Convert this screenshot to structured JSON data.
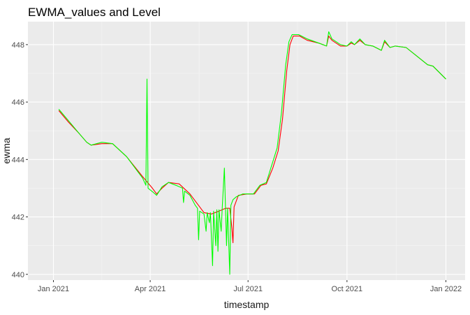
{
  "chart_data": {
    "type": "line",
    "title": "EWMA_values and Level",
    "xlabel": "timestamp",
    "ylabel": "ewma",
    "x_type": "date",
    "xlim": [
      "2021-01-01",
      "2022-01-01"
    ],
    "ylim": [
      439.8,
      448.8
    ],
    "x_ticks": [
      {
        "date": "2021-01-01",
        "label": "Jan 2021"
      },
      {
        "date": "2021-04-01",
        "label": "Apr 2021"
      },
      {
        "date": "2021-07-01",
        "label": "Jul 2021"
      },
      {
        "date": "2021-10-01",
        "label": "Oct 2021"
      },
      {
        "date": "2022-01-01",
        "label": "Jan 2022"
      }
    ],
    "y_ticks": [
      440,
      442,
      444,
      446,
      448
    ],
    "grid": true,
    "background": "#ebebeb",
    "series": [
      {
        "color": "#ff0000",
        "points": [
          [
            "2021-01-06",
            445.7
          ],
          [
            "2021-01-15",
            445.3
          ],
          [
            "2021-01-25",
            444.9
          ],
          [
            "2021-02-01",
            444.6
          ],
          [
            "2021-02-05",
            444.5
          ],
          [
            "2021-02-15",
            444.55
          ],
          [
            "2021-02-25",
            444.55
          ],
          [
            "2021-03-10",
            444.1
          ],
          [
            "2021-03-25",
            443.4
          ],
          [
            "2021-04-03",
            443.0
          ],
          [
            "2021-04-07",
            442.8
          ],
          [
            "2021-04-12",
            443.0
          ],
          [
            "2021-04-18",
            443.2
          ],
          [
            "2021-04-28",
            443.15
          ],
          [
            "2021-05-08",
            442.8
          ],
          [
            "2021-05-15",
            442.45
          ],
          [
            "2021-05-21",
            442.15
          ],
          [
            "2021-05-28",
            442.1
          ],
          [
            "2021-06-04",
            442.2
          ],
          [
            "2021-06-10",
            442.3
          ],
          [
            "2021-06-14",
            442.3
          ],
          [
            "2021-06-16",
            441.6
          ],
          [
            "2021-06-17",
            441.1
          ],
          [
            "2021-06-18",
            442.35
          ],
          [
            "2021-06-22",
            442.75
          ],
          [
            "2021-06-30",
            442.8
          ],
          [
            "2021-07-07",
            442.8
          ],
          [
            "2021-07-13",
            443.1
          ],
          [
            "2021-07-18",
            443.15
          ],
          [
            "2021-07-24",
            443.7
          ],
          [
            "2021-07-29",
            444.3
          ],
          [
            "2021-08-02",
            445.4
          ],
          [
            "2021-08-06",
            447.1
          ],
          [
            "2021-08-09",
            448.0
          ],
          [
            "2021-08-12",
            448.3
          ],
          [
            "2021-08-18",
            448.3
          ],
          [
            "2021-08-25",
            448.15
          ],
          [
            "2021-09-05",
            448.05
          ],
          [
            "2021-09-12",
            447.95
          ],
          [
            "2021-09-14",
            448.3
          ],
          [
            "2021-09-17",
            448.15
          ],
          [
            "2021-09-25",
            447.95
          ],
          [
            "2021-10-01",
            447.95
          ],
          [
            "2021-10-05",
            448.05
          ],
          [
            "2021-10-08",
            448.0
          ],
          [
            "2021-10-13",
            448.15
          ],
          [
            "2021-10-18",
            448.0
          ],
          [
            "2021-10-25",
            447.95
          ],
          [
            "2021-11-02",
            447.8
          ],
          [
            "2021-11-05",
            448.1
          ],
          [
            "2021-11-10",
            447.9
          ],
          [
            "2021-11-15",
            447.95
          ],
          [
            "2021-11-25",
            447.9
          ],
          [
            "2021-12-05",
            447.6
          ],
          [
            "2021-12-15",
            447.3
          ],
          [
            "2021-12-20",
            447.25
          ],
          [
            "2022-01-01",
            446.8
          ]
        ]
      },
      {
        "color": "#00ff00",
        "points": [
          [
            "2021-01-06",
            445.75
          ],
          [
            "2021-01-15",
            445.35
          ],
          [
            "2021-01-25",
            444.9
          ],
          [
            "2021-02-01",
            444.6
          ],
          [
            "2021-02-05",
            444.5
          ],
          [
            "2021-02-15",
            444.6
          ],
          [
            "2021-02-25",
            444.55
          ],
          [
            "2021-03-10",
            444.1
          ],
          [
            "2021-03-25",
            443.35
          ],
          [
            "2021-03-28",
            443.1
          ],
          [
            "2021-03-29",
            446.8
          ],
          [
            "2021-03-30",
            443.0
          ],
          [
            "2021-04-04",
            442.85
          ],
          [
            "2021-04-07",
            442.75
          ],
          [
            "2021-04-12",
            443.05
          ],
          [
            "2021-04-18",
            443.2
          ],
          [
            "2021-04-25",
            443.1
          ],
          [
            "2021-05-01",
            443.0
          ],
          [
            "2021-05-02",
            442.5
          ],
          [
            "2021-05-03",
            442.9
          ],
          [
            "2021-05-08",
            442.75
          ],
          [
            "2021-05-13",
            442.4
          ],
          [
            "2021-05-15",
            442.3
          ],
          [
            "2021-05-16",
            441.2
          ],
          [
            "2021-05-17",
            442.2
          ],
          [
            "2021-05-21",
            442.1
          ],
          [
            "2021-05-23",
            441.5
          ],
          [
            "2021-05-24",
            442.15
          ],
          [
            "2021-05-26",
            441.8
          ],
          [
            "2021-05-27",
            442.15
          ],
          [
            "2021-05-29",
            440.3
          ],
          [
            "2021-05-30",
            442.2
          ],
          [
            "2021-06-01",
            441.0
          ],
          [
            "2021-06-02",
            442.25
          ],
          [
            "2021-06-03",
            440.8
          ],
          [
            "2021-06-04",
            442.25
          ],
          [
            "2021-06-06",
            441.5
          ],
          [
            "2021-06-07",
            442.3
          ],
          [
            "2021-06-09",
            443.7
          ],
          [
            "2021-06-10",
            442.3
          ],
          [
            "2021-06-11",
            441.0
          ],
          [
            "2021-06-12",
            442.3
          ],
          [
            "2021-06-14",
            440.0
          ],
          [
            "2021-06-15",
            442.4
          ],
          [
            "2021-06-17",
            442.6
          ],
          [
            "2021-06-20",
            442.7
          ],
          [
            "2021-06-26",
            442.8
          ],
          [
            "2021-07-06",
            442.8
          ],
          [
            "2021-07-12",
            443.1
          ],
          [
            "2021-07-18",
            443.2
          ],
          [
            "2021-07-23",
            443.8
          ],
          [
            "2021-07-28",
            444.4
          ],
          [
            "2021-08-01",
            445.6
          ],
          [
            "2021-08-05",
            447.3
          ],
          [
            "2021-08-08",
            448.1
          ],
          [
            "2021-08-11",
            448.35
          ],
          [
            "2021-08-17",
            448.35
          ],
          [
            "2021-08-25",
            448.2
          ],
          [
            "2021-09-05",
            448.05
          ],
          [
            "2021-09-12",
            447.95
          ],
          [
            "2021-09-14",
            448.45
          ],
          [
            "2021-09-17",
            448.2
          ],
          [
            "2021-09-25",
            448.0
          ],
          [
            "2021-10-01",
            447.95
          ],
          [
            "2021-10-05",
            448.1
          ],
          [
            "2021-10-08",
            448.0
          ],
          [
            "2021-10-13",
            448.2
          ],
          [
            "2021-10-18",
            448.0
          ],
          [
            "2021-10-25",
            447.95
          ],
          [
            "2021-11-02",
            447.8
          ],
          [
            "2021-11-05",
            448.15
          ],
          [
            "2021-11-10",
            447.9
          ],
          [
            "2021-11-15",
            447.95
          ],
          [
            "2021-11-25",
            447.9
          ],
          [
            "2021-12-05",
            447.6
          ],
          [
            "2021-12-15",
            447.3
          ],
          [
            "2021-12-20",
            447.25
          ],
          [
            "2022-01-01",
            446.8
          ]
        ]
      }
    ]
  }
}
